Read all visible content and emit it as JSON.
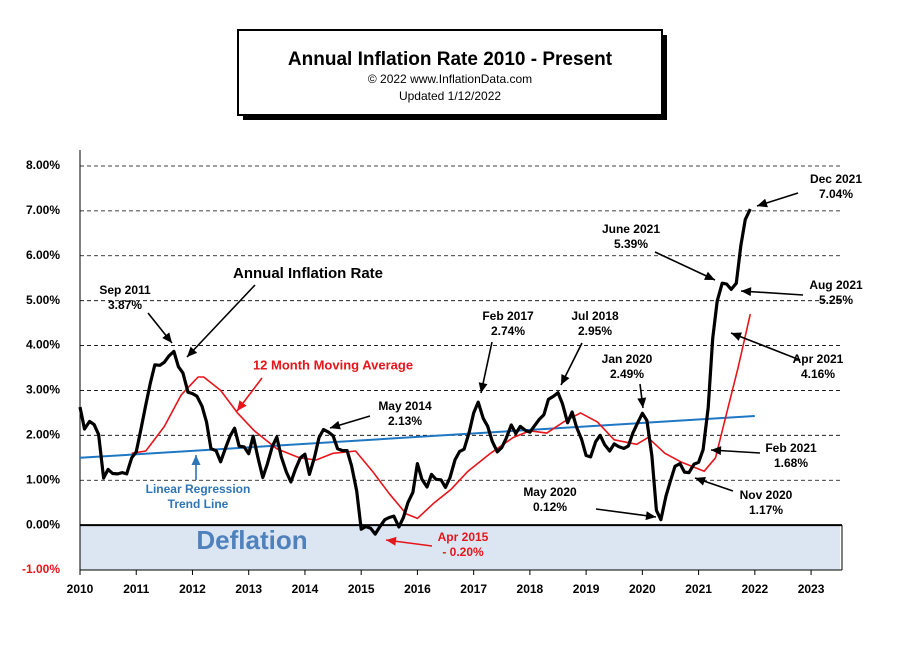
{
  "chart_data": {
    "type": "line",
    "title": "Annual  Inflation  Rate 2010 - Present",
    "subtitle": "© 2022   www.InflationData.com",
    "updated": "Updated   1/12/2022",
    "xlim": [
      2010,
      2023.55
    ],
    "xticks": [
      2010,
      2011,
      2012,
      2013,
      2014,
      2015,
      2016,
      2017,
      2018,
      2019,
      2020,
      2021,
      2022,
      2023
    ],
    "ylim": [
      -1,
      8
    ],
    "yticks": [
      {
        "value": -1,
        "label": "-1.00%"
      },
      {
        "value": 0,
        "label": "0.00%"
      },
      {
        "value": 1,
        "label": "1.00%"
      },
      {
        "value": 2,
        "label": "2.00%"
      },
      {
        "value": 3,
        "label": "3.00%"
      },
      {
        "value": 4,
        "label": "4.00%"
      },
      {
        "value": 5,
        "label": "5.00%"
      },
      {
        "value": 6,
        "label": "6.00%"
      },
      {
        "value": 7,
        "label": "7.00%"
      },
      {
        "value": 8,
        "label": "8.00%"
      }
    ],
    "grid": true,
    "shaded_label": "Deflation",
    "series": [
      {
        "name": "Linear Regression Trend Line",
        "color": "#1f77c4",
        "x": [
          2010,
          2022
        ],
        "values": [
          1.5,
          2.43
        ]
      },
      {
        "name": "12 Month Moving Average",
        "color": "#e8141b",
        "x": [
          2010.92,
          2011.17,
          2011.5,
          2011.8,
          2012.1,
          2012.2,
          2012.5,
          2012.8,
          2013.1,
          2013.5,
          2013.9,
          2014.2,
          2014.5,
          2014.9,
          2015.2,
          2015.5,
          2015.8,
          2016.0,
          2016.3,
          2016.6,
          2016.9,
          2017.3,
          2017.7,
          2018.0,
          2018.3,
          2018.6,
          2018.9,
          2019.2,
          2019.5,
          2019.9,
          2020.1,
          2020.4,
          2020.7,
          2020.9,
          2021.1,
          2021.3,
          2021.5,
          2021.7,
          2021.92
        ],
        "values": [
          1.6,
          1.65,
          2.2,
          2.9,
          3.3,
          3.3,
          3.0,
          2.5,
          2.1,
          1.7,
          1.5,
          1.45,
          1.6,
          1.65,
          1.2,
          0.7,
          0.25,
          0.15,
          0.5,
          0.8,
          1.2,
          1.6,
          1.95,
          2.1,
          2.05,
          2.3,
          2.5,
          2.3,
          1.9,
          1.8,
          1.95,
          1.6,
          1.4,
          1.3,
          1.2,
          1.5,
          2.5,
          3.5,
          4.7
        ]
      },
      {
        "name": "Annual Inflation Rate",
        "color": "#000000",
        "x": [
          2010.0,
          2010.08,
          2010.17,
          2010.25,
          2010.33,
          2010.42,
          2010.5,
          2010.58,
          2010.67,
          2010.75,
          2010.83,
          2010.92,
          2011.0,
          2011.08,
          2011.17,
          2011.25,
          2011.33,
          2011.42,
          2011.5,
          2011.58,
          2011.67,
          2011.75,
          2011.83,
          2011.92,
          2012.0,
          2012.08,
          2012.17,
          2012.25,
          2012.33,
          2012.42,
          2012.5,
          2012.58,
          2012.67,
          2012.75,
          2012.83,
          2012.92,
          2013.0,
          2013.08,
          2013.17,
          2013.25,
          2013.33,
          2013.42,
          2013.5,
          2013.58,
          2013.67,
          2013.75,
          2013.83,
          2013.92,
          2014.0,
          2014.08,
          2014.17,
          2014.25,
          2014.33,
          2014.42,
          2014.5,
          2014.58,
          2014.67,
          2014.75,
          2014.83,
          2014.92,
          2015.0,
          2015.08,
          2015.17,
          2015.25,
          2015.33,
          2015.42,
          2015.5,
          2015.58,
          2015.67,
          2015.75,
          2015.83,
          2015.92,
          2016.0,
          2016.08,
          2016.17,
          2016.25,
          2016.33,
          2016.42,
          2016.5,
          2016.58,
          2016.67,
          2016.75,
          2016.83,
          2016.92,
          2017.0,
          2017.08,
          2017.17,
          2017.25,
          2017.33,
          2017.42,
          2017.5,
          2017.58,
          2017.67,
          2017.75,
          2017.83,
          2017.92,
          2018.0,
          2018.08,
          2018.17,
          2018.25,
          2018.33,
          2018.42,
          2018.5,
          2018.58,
          2018.67,
          2018.75,
          2018.83,
          2018.92,
          2019.0,
          2019.08,
          2019.17,
          2019.25,
          2019.33,
          2019.42,
          2019.5,
          2019.58,
          2019.67,
          2019.75,
          2019.83,
          2019.92,
          2020.0,
          2020.08,
          2020.17,
          2020.25,
          2020.33,
          2020.42,
          2020.5,
          2020.58,
          2020.67,
          2020.75,
          2020.83,
          2020.92,
          2021.0,
          2021.08,
          2021.17,
          2021.25,
          2021.33,
          2021.42,
          2021.5,
          2021.58,
          2021.67,
          2021.75,
          2021.83,
          2021.92
        ],
        "values": [
          2.63,
          2.14,
          2.31,
          2.24,
          2.02,
          1.05,
          1.24,
          1.15,
          1.14,
          1.17,
          1.14,
          1.5,
          1.63,
          2.11,
          2.68,
          3.16,
          3.57,
          3.56,
          3.63,
          3.77,
          3.87,
          3.53,
          3.39,
          2.96,
          2.93,
          2.87,
          2.65,
          2.3,
          1.7,
          1.66,
          1.41,
          1.69,
          1.99,
          2.16,
          1.76,
          1.74,
          1.59,
          1.98,
          1.47,
          1.06,
          1.36,
          1.75,
          1.96,
          1.52,
          1.18,
          0.96,
          1.24,
          1.5,
          1.58,
          1.13,
          1.51,
          1.95,
          2.13,
          2.07,
          1.99,
          1.7,
          1.66,
          1.66,
          1.32,
          0.76,
          -0.09,
          -0.03,
          -0.07,
          -0.2,
          -0.04,
          0.12,
          0.17,
          0.2,
          -0.04,
          0.17,
          0.5,
          0.73,
          1.37,
          1.02,
          0.85,
          1.13,
          1.02,
          1.01,
          0.84,
          1.06,
          1.46,
          1.64,
          1.69,
          2.07,
          2.5,
          2.74,
          2.38,
          2.2,
          1.87,
          1.63,
          1.73,
          1.94,
          2.23,
          2.04,
          2.2,
          2.11,
          2.07,
          2.21,
          2.36,
          2.46,
          2.8,
          2.87,
          2.95,
          2.7,
          2.28,
          2.52,
          2.18,
          1.91,
          1.55,
          1.52,
          1.86,
          2.0,
          1.79,
          1.65,
          1.81,
          1.75,
          1.71,
          1.76,
          2.05,
          2.29,
          2.49,
          2.33,
          1.54,
          0.33,
          0.12,
          0.65,
          0.99,
          1.31,
          1.37,
          1.18,
          1.17,
          1.36,
          1.4,
          1.68,
          2.62,
          4.16,
          4.99,
          5.39,
          5.37,
          5.25,
          5.39,
          6.22,
          6.81,
          7.04
        ]
      }
    ],
    "annotations": [
      {
        "text": [
          "Sep 2011",
          "3.87%"
        ]
      },
      {
        "text": [
          "Linear Regression",
          "Trend Line"
        ]
      },
      {
        "text": [
          "May 2014",
          "2.13%"
        ]
      },
      {
        "text": [
          "Feb 2017",
          "2.74%"
        ]
      },
      {
        "text": [
          "Jul 2018",
          "2.95%"
        ]
      },
      {
        "text": [
          "Jan 2020",
          "2.49%"
        ]
      },
      {
        "text": [
          "May 2020",
          "0.12%"
        ]
      },
      {
        "text": [
          "Apr 2015",
          "- 0.20%"
        ]
      },
      {
        "text": [
          "June 2021",
          "5.39%"
        ]
      },
      {
        "text": [
          "Dec 2021",
          "7.04%"
        ]
      },
      {
        "text": [
          "Aug 2021",
          "5.25%"
        ]
      },
      {
        "text": [
          "Apr 2021",
          "4.16%"
        ]
      },
      {
        "text": [
          "Feb 2021",
          "1.68%"
        ]
      },
      {
        "text": [
          "Nov 2020",
          "1.17%"
        ]
      }
    ]
  }
}
